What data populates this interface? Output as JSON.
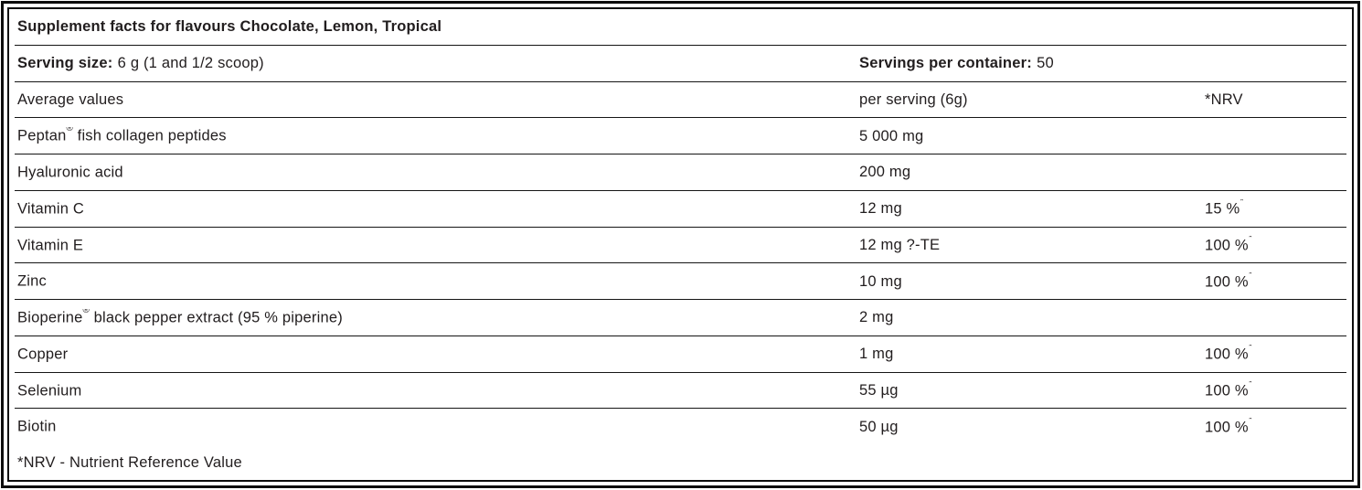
{
  "title": "Supplement facts for flavours Chocolate, Lemon, Tropical",
  "serving_row": {
    "size_label": "Serving size:",
    "size_value": "6 g (1 and 1/2 scoop)",
    "container_label": "Servings per container:",
    "container_value": "50"
  },
  "header_row": {
    "name": "Average values",
    "amount": "per serving (6g)",
    "nrv": "*NRV"
  },
  "rows": [
    {
      "name": "Peptan",
      "name_sup": "®",
      "name_rest": " fish collagen peptides",
      "amount": "5 000 mg",
      "nrv": "",
      "nrv_sup": ""
    },
    {
      "name": "Hyaluronic acid",
      "name_sup": "",
      "name_rest": "",
      "amount": "200 mg",
      "nrv": "",
      "nrv_sup": ""
    },
    {
      "name": "Vitamin C",
      "name_sup": "",
      "name_rest": "",
      "amount": "12 mg",
      "nrv": "15 %",
      "nrv_sup": "*"
    },
    {
      "name": "Vitamin E",
      "name_sup": "",
      "name_rest": "",
      "amount": "12 mg ?-TE",
      "nrv": "100 %",
      "nrv_sup": "*"
    },
    {
      "name": "Zinc",
      "name_sup": "",
      "name_rest": "",
      "amount": "10 mg",
      "nrv": "100 %",
      "nrv_sup": "*"
    },
    {
      "name": "Bioperine",
      "name_sup": "®",
      "name_rest": " black pepper extract (95 % piperine)",
      "amount": "2 mg",
      "nrv": "",
      "nrv_sup": ""
    },
    {
      "name": "Copper",
      "name_sup": "",
      "name_rest": "",
      "amount": "1 mg",
      "nrv": "100 %",
      "nrv_sup": "*"
    },
    {
      "name": "Selenium",
      "name_sup": "",
      "name_rest": "",
      "amount": "55 µg",
      "nrv": "100 %",
      "nrv_sup": "*"
    },
    {
      "name": "Biotin",
      "name_sup": "",
      "name_rest": "",
      "amount": "50 µg",
      "nrv": "100 %",
      "nrv_sup": "*"
    }
  ],
  "footnote": "*NRV - Nutrient Reference Value",
  "colors": {
    "text": "#211d1e",
    "border": "#0d0d0d"
  }
}
